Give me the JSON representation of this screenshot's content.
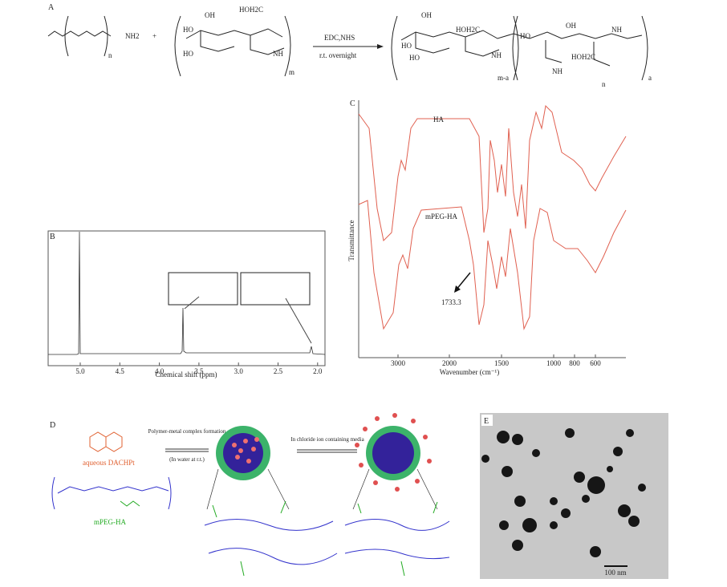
{
  "panel_a": {
    "label": "A",
    "reactant1": {
      "n": "n",
      "amine": "NH2"
    },
    "plus": "+",
    "reactant2": {
      "oh1": "OH",
      "hoh2c": "HOH2C",
      "ho1": "HO",
      "ho2": "HO",
      "nh": "NH",
      "m": "m"
    },
    "conditions": {
      "reagents": "EDC,NHS",
      "time": "r.t. overnight"
    },
    "product": {
      "oh1": "OH",
      "hoh2c1": "HOH2C",
      "ho1": "HO",
      "ho2": "HO",
      "nh1": "NH",
      "ma": "m-a",
      "ho3": "HO",
      "oh2": "OH",
      "nh2": "NH",
      "hoh2c2": "HOH2C",
      "nh3": "NH",
      "n": "n",
      "a": "a"
    }
  },
  "panel_b": {
    "label": "B",
    "xlabel": "Chemical shift (ppm)",
    "xticks": [
      {
        "value": 5,
        "label": "5.0"
      },
      {
        "value": 4.5,
        "label": "4.5"
      },
      {
        "value": 4,
        "label": "4.0"
      },
      {
        "value": 3.5,
        "label": "3.5"
      },
      {
        "value": 3,
        "label": "3.0"
      },
      {
        "value": 2.5,
        "label": "2.5"
      },
      {
        "value": 2,
        "label": "2.0"
      }
    ]
  },
  "panel_c": {
    "label": "C",
    "ylabel": "Transmittance",
    "xlabel": "Wavenumber (cm⁻¹)",
    "xticks": [
      3000,
      2000,
      1500,
      1000,
      800,
      600
    ],
    "curve1": "HA",
    "curve2": "mPEG-HA",
    "annotation": "1733.3"
  },
  "panel_d": {
    "label": "D",
    "drug": "aqueous DACHPt",
    "polymer": "mPEG-HA",
    "step1": "Polymer-metal complex formation",
    "step1_note": "(In water at r.t.)",
    "step2": "In chloride ion containing media"
  },
  "panel_e": {
    "label": "E",
    "scale": "100 nm"
  }
}
